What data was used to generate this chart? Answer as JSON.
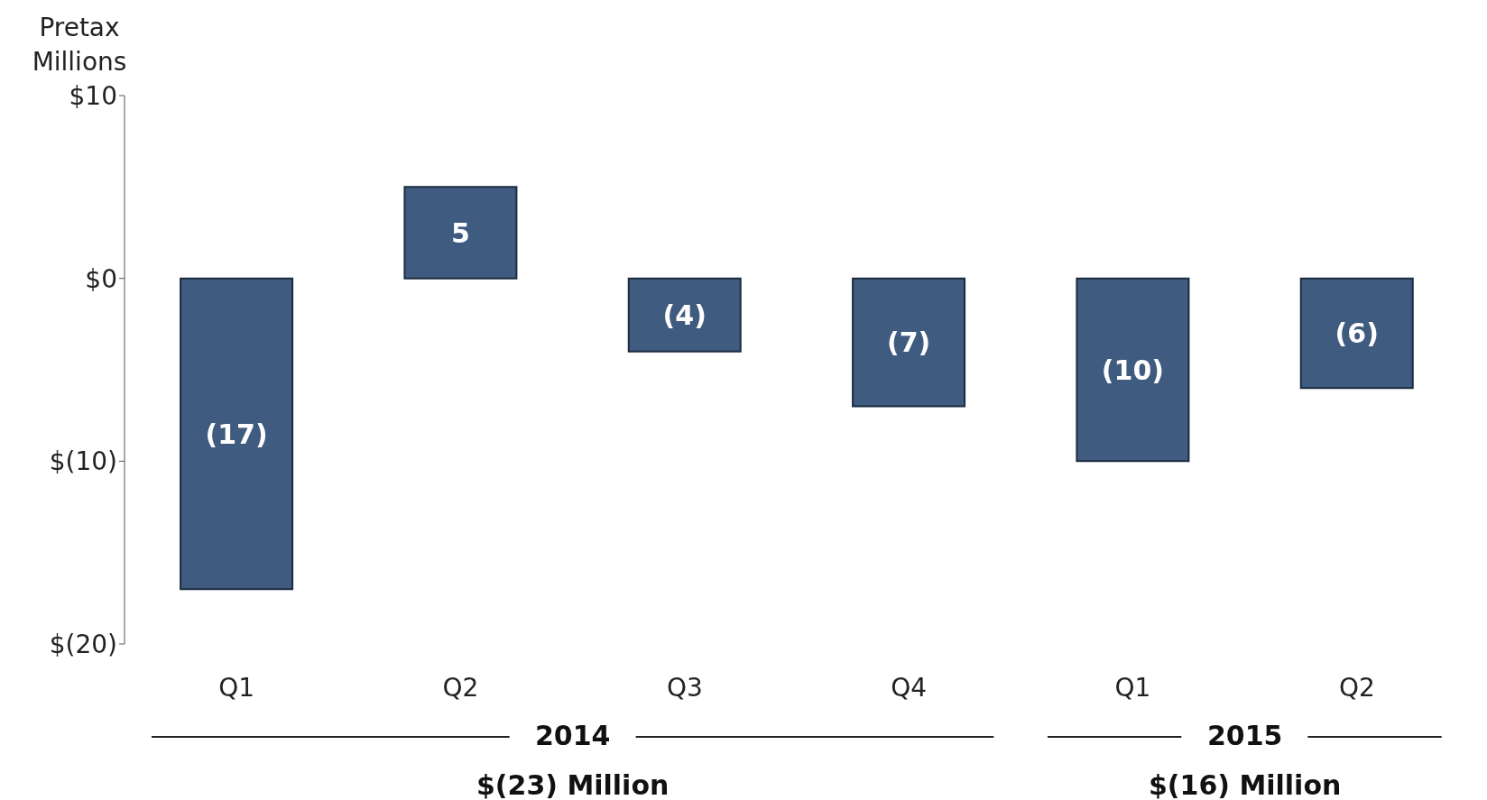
{
  "chart_data": {
    "type": "bar",
    "ylabel": "Pretax Millions",
    "categories": [
      "Q1",
      "Q2",
      "Q3",
      "Q4",
      "Q1",
      "Q2"
    ],
    "values": [
      -17,
      5,
      -4,
      -7,
      -10,
      -6
    ],
    "value_labels": [
      "(17)",
      "5",
      "(4)",
      "(7)",
      "(10)",
      "(6)"
    ],
    "color": "#3f5b80",
    "ylim": [
      -20,
      10
    ],
    "yticks": [
      {
        "value": -20,
        "label": "$(20)"
      },
      {
        "value": -10,
        "label": "$(10)"
      },
      {
        "value": 0,
        "label": "$0"
      },
      {
        "value": 10,
        "label": "$10"
      }
    ],
    "grid": false,
    "annotations": [
      "2014",
      "$(23) Million",
      "2015",
      "$(16) Million"
    ]
  }
}
